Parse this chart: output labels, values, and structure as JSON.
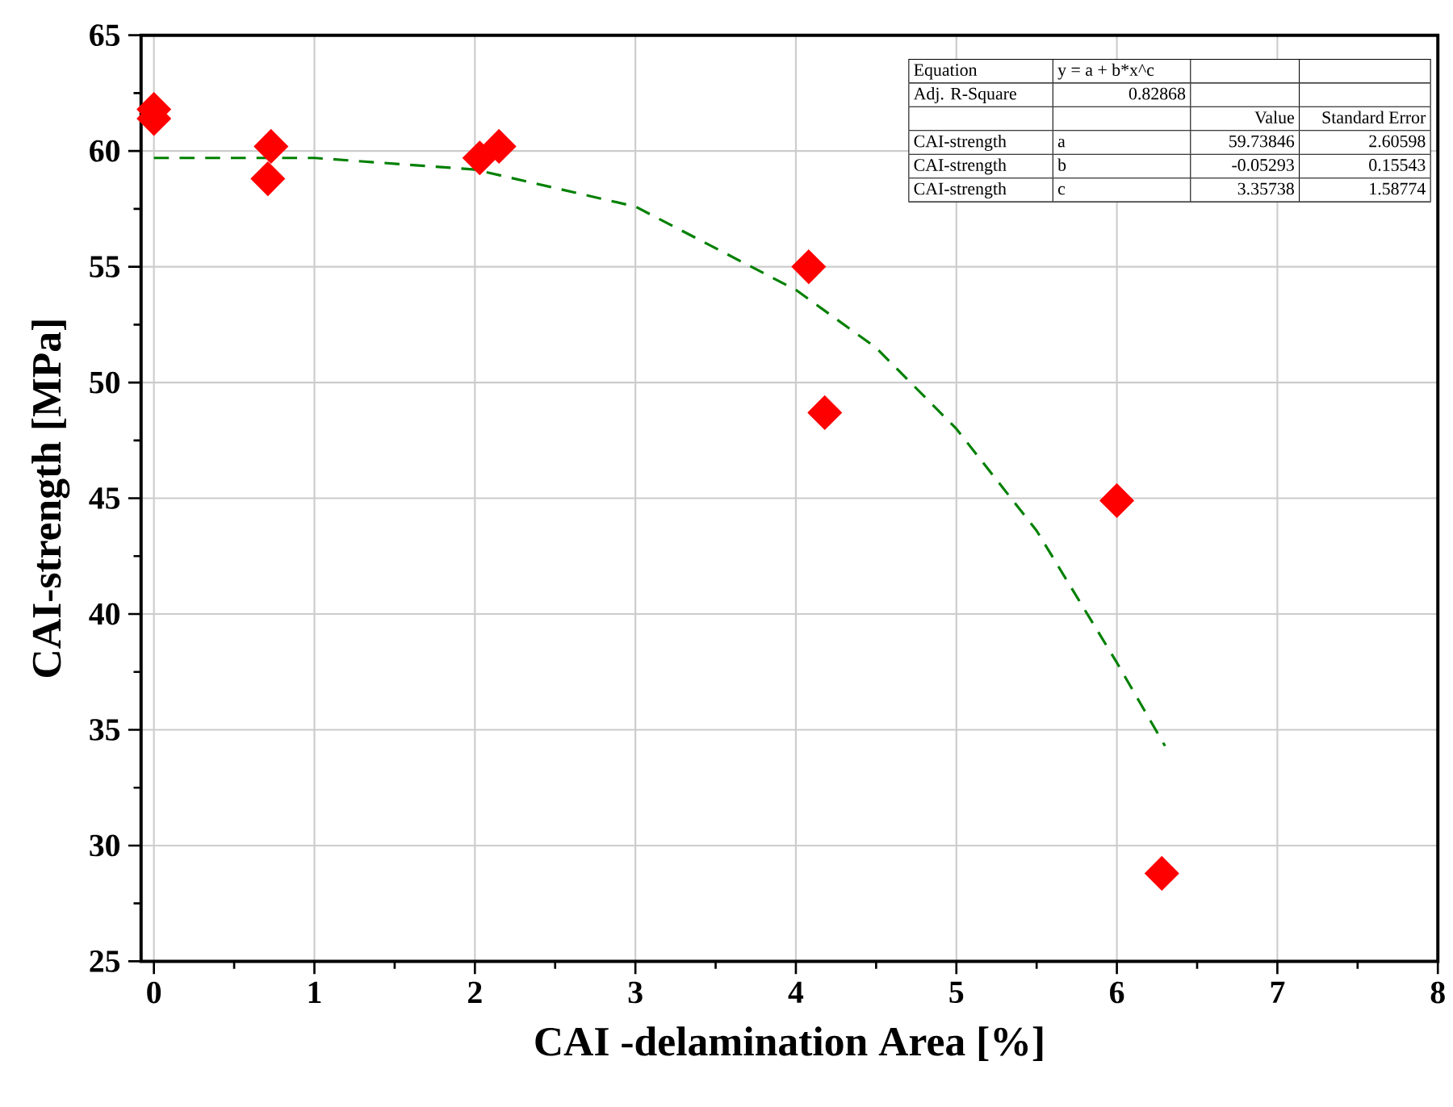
{
  "chart_data": {
    "type": "scatter",
    "xlabel": "CAI -delamination Area [%]",
    "ylabel": "CAI-strength [MPa]",
    "xlim": [
      -0.08,
      8
    ],
    "ylim": [
      25,
      65
    ],
    "xticks": [
      0,
      1,
      2,
      3,
      4,
      5,
      6,
      7,
      8
    ],
    "yticks": [
      25,
      30,
      35,
      40,
      45,
      50,
      55,
      60,
      65
    ],
    "grid": true,
    "marker": "diamond",
    "series": [
      {
        "color": "#ff0000",
        "x": [
          0,
          0,
          0.73,
          0.71,
          2.03,
          2.15,
          4.08,
          4.18,
          6.0,
          6.28
        ],
        "values": [
          61.8,
          61.4,
          60.2,
          58.8,
          59.7,
          60.2,
          55.0,
          48.7,
          44.9,
          28.8
        ]
      },
      {
        "type": "line",
        "color": "#008000",
        "marker": "none",
        "line_style": "dashed",
        "x": [
          0,
          1,
          2,
          3,
          4,
          4.5,
          5,
          5.5,
          6,
          6.3
        ],
        "values": [
          59.7,
          59.7,
          59.2,
          57.6,
          54.0,
          51.5,
          48.0,
          43.6,
          37.9,
          34.3
        ]
      }
    ],
    "annotations": [
      "Equation",
      "y = a + b*x^c",
      "Adj. R-Square",
      "0.82868",
      "Value",
      "Standard Error",
      "CAI-strength",
      "a",
      "59.73846",
      "2.60598",
      "CAI-strength",
      "b",
      "-0.05293",
      "0.15543",
      "CAI-strength",
      "c",
      "3.35738",
      "1.58774"
    ]
  }
}
